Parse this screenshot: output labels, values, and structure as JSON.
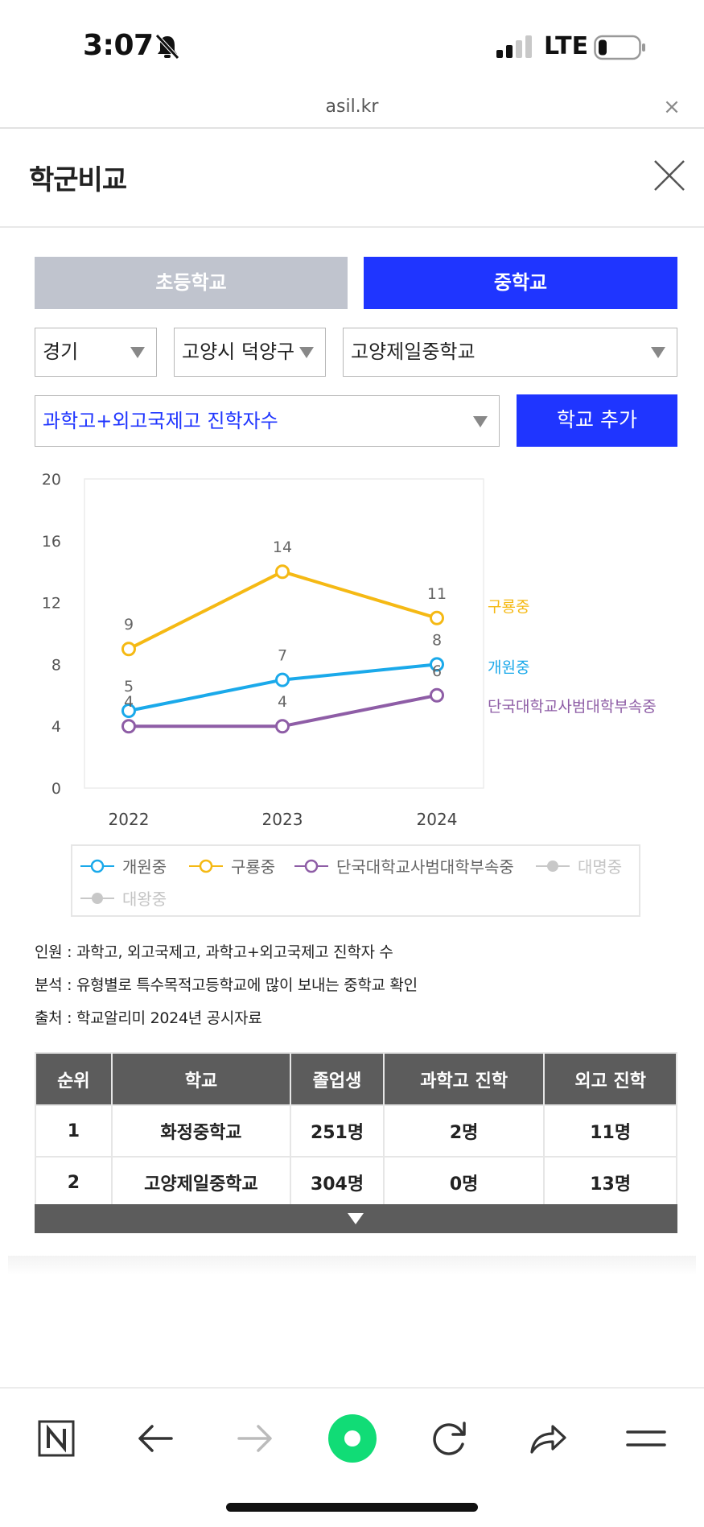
{
  "status_bar": {
    "time": "3:07",
    "carrier": "LTE"
  },
  "browser": {
    "url": "asil.kr",
    "close": "×"
  },
  "header": {
    "title": "학군비교"
  },
  "tabs": [
    {
      "label": "초등학교",
      "active": false
    },
    {
      "label": "중학교",
      "active": true
    }
  ],
  "filters": {
    "region": "경기",
    "district": "고양시 덕양구",
    "school": "고양제일중학교",
    "metric": "과학고+외고국제고 진학자수",
    "add_button": "학교 추가"
  },
  "chart_data": {
    "type": "line",
    "x": [
      "2022",
      "2023",
      "2024"
    ],
    "ylim": [
      0,
      20
    ],
    "yticks": [
      0,
      4,
      8,
      12,
      16,
      20
    ],
    "series": [
      {
        "name": "개원중",
        "color": "#1aa9ea",
        "values": [
          5,
          7,
          8
        ]
      },
      {
        "name": "구룡중",
        "color": "#f5b914",
        "values": [
          9,
          14,
          11
        ]
      },
      {
        "name": "단국대학교사범대학부속중",
        "color": "#8e5da6",
        "values": [
          4,
          4,
          6
        ]
      }
    ],
    "legend": [
      {
        "name": "개원중",
        "color": "#1aa9ea",
        "enabled": true
      },
      {
        "name": "구룡중",
        "color": "#f5b914",
        "enabled": true
      },
      {
        "name": "단국대학교사범대학부속중",
        "color": "#8e5da6",
        "enabled": true
      },
      {
        "name": "대명중",
        "color": "#c8c8c8",
        "enabled": false
      },
      {
        "name": "대왕중",
        "color": "#c8c8c8",
        "enabled": false
      }
    ],
    "legend_position": "bottom",
    "grid": false
  },
  "notes": {
    "line1": "인원 : 과학고, 외고국제고, 과학고+외고국제고 진학자 수",
    "line2": "분석 : 유형별로 특수목적고등학교에 많이 보내는 중학교 확인",
    "line3": "출처 : 학교알리미 2024년 공시자료"
  },
  "table": {
    "headers": [
      "순위",
      "학교",
      "졸업생",
      "과학고 진학",
      "외고 진학"
    ],
    "rows": [
      [
        "1",
        "화정중학교",
        "251명",
        "2명",
        "11명"
      ],
      [
        "2",
        "고양제일중학교",
        "304명",
        "0명",
        "13명"
      ]
    ]
  },
  "colors": {
    "accent": "#1f35ff",
    "tab_inactive": "#c0c4ce",
    "table_header": "#5c5c5c"
  },
  "icons": {
    "status": [
      "bell-slash-icon",
      "signal-icon",
      "battery-icon"
    ],
    "toolbar": [
      "naver-n-icon",
      "back-arrow-icon",
      "forward-arrow-icon",
      "green-dot-icon",
      "reload-icon",
      "share-icon",
      "menu-icon"
    ]
  }
}
